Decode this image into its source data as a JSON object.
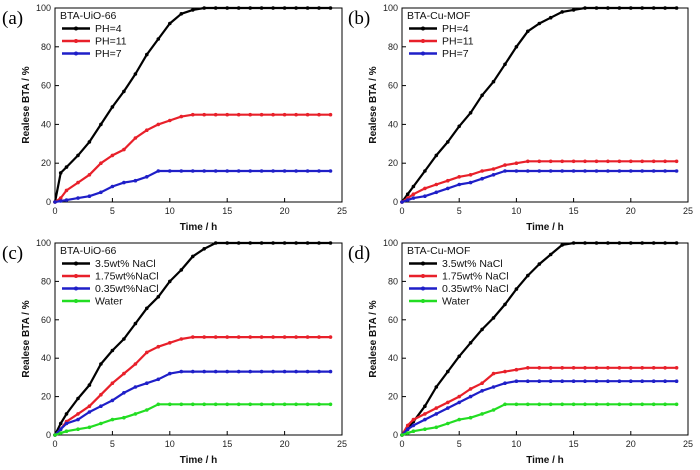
{
  "chart_data": [
    {
      "type": "line",
      "panel": "(a)",
      "title": "BTA-UiO-66",
      "xlabel": "Time / h",
      "ylabel": "Realese BTA / %",
      "xlim": [
        0,
        25
      ],
      "ylim": [
        0,
        100
      ],
      "xticks": [
        0,
        5,
        10,
        15,
        20,
        25
      ],
      "yticks": [
        0,
        20,
        40,
        60,
        80,
        100
      ],
      "legend": "top-left",
      "series": [
        {
          "name": "PH=4",
          "color": "#000000",
          "x": [
            0,
            0.5,
            1,
            2,
            3,
            4,
            5,
            6,
            7,
            8,
            9,
            10,
            11,
            12,
            13,
            14,
            15,
            16,
            17,
            18,
            19,
            20,
            21,
            22,
            23,
            24
          ],
          "y": [
            0,
            15,
            18,
            24,
            31,
            40,
            49,
            57,
            66,
            76,
            84,
            92,
            97,
            99,
            100,
            100,
            100,
            100,
            100,
            100,
            100,
            100,
            100,
            100,
            100,
            100
          ]
        },
        {
          "name": "PH=11",
          "color": "#e8202a",
          "x": [
            0,
            0.5,
            1,
            2,
            3,
            4,
            5,
            6,
            7,
            8,
            9,
            10,
            11,
            12,
            13,
            14,
            15,
            16,
            17,
            18,
            19,
            20,
            21,
            22,
            23,
            24
          ],
          "y": [
            0,
            2,
            6,
            10,
            14,
            20,
            24,
            27,
            33,
            37,
            40,
            42,
            44,
            45,
            45,
            45,
            45,
            45,
            45,
            45,
            45,
            45,
            45,
            45,
            45,
            45
          ]
        },
        {
          "name": "PH=7",
          "color": "#1f1fc8",
          "x": [
            0,
            0.5,
            1,
            2,
            3,
            4,
            5,
            6,
            7,
            8,
            9,
            10,
            11,
            12,
            13,
            14,
            15,
            16,
            17,
            18,
            19,
            20,
            21,
            22,
            23,
            24
          ],
          "y": [
            0,
            0.5,
            1,
            2,
            3,
            5,
            8,
            10,
            11,
            13,
            16,
            16,
            16,
            16,
            16,
            16,
            16,
            16,
            16,
            16,
            16,
            16,
            16,
            16,
            16,
            16
          ]
        }
      ]
    },
    {
      "type": "line",
      "panel": "(b)",
      "title": "BTA-Cu-MOF",
      "xlabel": "Time / h",
      "ylabel": "Realese BTA / %",
      "xlim": [
        0,
        25
      ],
      "ylim": [
        0,
        100
      ],
      "xticks": [
        0,
        5,
        10,
        15,
        20,
        25
      ],
      "yticks": [
        0,
        20,
        40,
        60,
        80,
        100
      ],
      "legend": "top-left",
      "series": [
        {
          "name": "PH=4",
          "color": "#000000",
          "x": [
            0,
            0.5,
            1,
            2,
            3,
            4,
            5,
            6,
            7,
            8,
            9,
            10,
            11,
            12,
            13,
            14,
            15,
            16,
            17,
            18,
            19,
            20,
            21,
            22,
            23,
            24
          ],
          "y": [
            0,
            4,
            8,
            16,
            24,
            31,
            39,
            46,
            55,
            62,
            71,
            80,
            88,
            92,
            95,
            98,
            99,
            100,
            100,
            100,
            100,
            100,
            100,
            100,
            100,
            100
          ]
        },
        {
          "name": "PH=11",
          "color": "#e8202a",
          "x": [
            0,
            0.5,
            1,
            2,
            3,
            4,
            5,
            6,
            7,
            8,
            9,
            10,
            11,
            12,
            13,
            14,
            15,
            16,
            17,
            18,
            19,
            20,
            21,
            22,
            23,
            24
          ],
          "y": [
            0,
            2,
            4,
            7,
            9,
            11,
            13,
            14,
            16,
            17,
            19,
            20,
            21,
            21,
            21,
            21,
            21,
            21,
            21,
            21,
            21,
            21,
            21,
            21,
            21,
            21
          ]
        },
        {
          "name": "PH=7",
          "color": "#1f1fc8",
          "x": [
            0,
            0.5,
            1,
            2,
            3,
            4,
            5,
            6,
            7,
            8,
            9,
            10,
            11,
            12,
            13,
            14,
            15,
            16,
            17,
            18,
            19,
            20,
            21,
            22,
            23,
            24
          ],
          "y": [
            0,
            1,
            2,
            3,
            5,
            7,
            9,
            10,
            12,
            14,
            16,
            16,
            16,
            16,
            16,
            16,
            16,
            16,
            16,
            16,
            16,
            16,
            16,
            16,
            16,
            16
          ]
        }
      ]
    },
    {
      "type": "line",
      "panel": "(c)",
      "title": "BTA-UiO-66",
      "xlabel": "Time / h",
      "ylabel": "Realese BTA / %",
      "xlim": [
        0,
        25
      ],
      "ylim": [
        0,
        100
      ],
      "xticks": [
        0,
        5,
        10,
        15,
        20,
        25
      ],
      "yticks": [
        0,
        20,
        40,
        60,
        80,
        100
      ],
      "legend": "top-left",
      "series": [
        {
          "name": "3.5wt% NaCl",
          "color": "#000000",
          "x": [
            0,
            0.5,
            1,
            2,
            3,
            4,
            5,
            6,
            7,
            8,
            9,
            10,
            11,
            12,
            13,
            14,
            15,
            16,
            17,
            18,
            19,
            20,
            21,
            22,
            23,
            24
          ],
          "y": [
            0,
            6,
            11,
            19,
            26,
            37,
            44,
            50,
            58,
            66,
            72,
            80,
            86,
            93,
            97,
            100,
            100,
            100,
            100,
            100,
            100,
            100,
            100,
            100,
            100,
            100
          ]
        },
        {
          "name": "1.75wt%NaCl",
          "color": "#e8202a",
          "x": [
            0,
            0.5,
            1,
            2,
            3,
            4,
            5,
            6,
            7,
            8,
            9,
            10,
            11,
            12,
            13,
            14,
            15,
            16,
            17,
            18,
            19,
            20,
            21,
            22,
            23,
            24
          ],
          "y": [
            0,
            3,
            7,
            11,
            15,
            21,
            27,
            32,
            37,
            43,
            46,
            48,
            50,
            51,
            51,
            51,
            51,
            51,
            51,
            51,
            51,
            51,
            51,
            51,
            51,
            51
          ]
        },
        {
          "name": "0.35wt%NaCl",
          "color": "#1f1fc8",
          "x": [
            0,
            0.5,
            1,
            2,
            3,
            4,
            5,
            6,
            7,
            8,
            9,
            10,
            11,
            12,
            13,
            14,
            15,
            16,
            17,
            18,
            19,
            20,
            21,
            22,
            23,
            24
          ],
          "y": [
            0,
            3,
            6,
            8,
            12,
            15,
            18,
            22,
            25,
            27,
            29,
            32,
            33,
            33,
            33,
            33,
            33,
            33,
            33,
            33,
            33,
            33,
            33,
            33,
            33,
            33
          ]
        },
        {
          "name": "Water",
          "color": "#22dd22",
          "x": [
            0,
            0.5,
            1,
            2,
            3,
            4,
            5,
            6,
            7,
            8,
            9,
            10,
            11,
            12,
            13,
            14,
            15,
            16,
            17,
            18,
            19,
            20,
            21,
            22,
            23,
            24
          ],
          "y": [
            0,
            1,
            2,
            3,
            4,
            6,
            8,
            9,
            11,
            13,
            16,
            16,
            16,
            16,
            16,
            16,
            16,
            16,
            16,
            16,
            16,
            16,
            16,
            16,
            16,
            16
          ]
        }
      ]
    },
    {
      "type": "line",
      "panel": "(d)",
      "title": "BTA-Cu-MOF",
      "xlabel": "Time / h",
      "ylabel": "Realese BTA / %",
      "xlim": [
        0,
        25
      ],
      "ylim": [
        0,
        100
      ],
      "xticks": [
        0,
        5,
        10,
        15,
        20,
        25
      ],
      "yticks": [
        0,
        20,
        40,
        60,
        80,
        100
      ],
      "legend": "top-left",
      "series": [
        {
          "name": "3.5wt% NaCl",
          "color": "#000000",
          "x": [
            0,
            0.5,
            1,
            2,
            3,
            4,
            5,
            6,
            7,
            8,
            9,
            10,
            11,
            12,
            13,
            14,
            15,
            16,
            17,
            18,
            19,
            20,
            21,
            22,
            23,
            24
          ],
          "y": [
            0,
            3,
            7,
            15,
            25,
            33,
            41,
            48,
            55,
            61,
            68,
            76,
            83,
            89,
            94,
            99,
            100,
            100,
            100,
            100,
            100,
            100,
            100,
            100,
            100,
            100
          ]
        },
        {
          "name": "1.75wt% NaCl",
          "color": "#e8202a",
          "x": [
            0,
            0.5,
            1,
            2,
            3,
            4,
            5,
            6,
            7,
            8,
            9,
            10,
            11,
            12,
            13,
            14,
            15,
            16,
            17,
            18,
            19,
            20,
            21,
            22,
            23,
            24
          ],
          "y": [
            0,
            5,
            8,
            11,
            14,
            17,
            20,
            24,
            27,
            32,
            33,
            34,
            35,
            35,
            35,
            35,
            35,
            35,
            35,
            35,
            35,
            35,
            35,
            35,
            35,
            35
          ]
        },
        {
          "name": "0.35wt% NaCl",
          "color": "#1f1fc8",
          "x": [
            0,
            0.5,
            1,
            2,
            3,
            4,
            5,
            6,
            7,
            8,
            9,
            10,
            11,
            12,
            13,
            14,
            15,
            16,
            17,
            18,
            19,
            20,
            21,
            22,
            23,
            24
          ],
          "y": [
            0,
            3,
            5,
            8,
            11,
            14,
            17,
            20,
            23,
            25,
            27,
            28,
            28,
            28,
            28,
            28,
            28,
            28,
            28,
            28,
            28,
            28,
            28,
            28,
            28,
            28
          ]
        },
        {
          "name": "Water",
          "color": "#22dd22",
          "x": [
            0,
            0.5,
            1,
            2,
            3,
            4,
            5,
            6,
            7,
            8,
            9,
            10,
            11,
            12,
            13,
            14,
            15,
            16,
            17,
            18,
            19,
            20,
            21,
            22,
            23,
            24
          ],
          "y": [
            0,
            1,
            2,
            3,
            4,
            6,
            8,
            9,
            11,
            13,
            16,
            16,
            16,
            16,
            16,
            16,
            16,
            16,
            16,
            16,
            16,
            16,
            16,
            16,
            16,
            16
          ]
        }
      ]
    }
  ]
}
